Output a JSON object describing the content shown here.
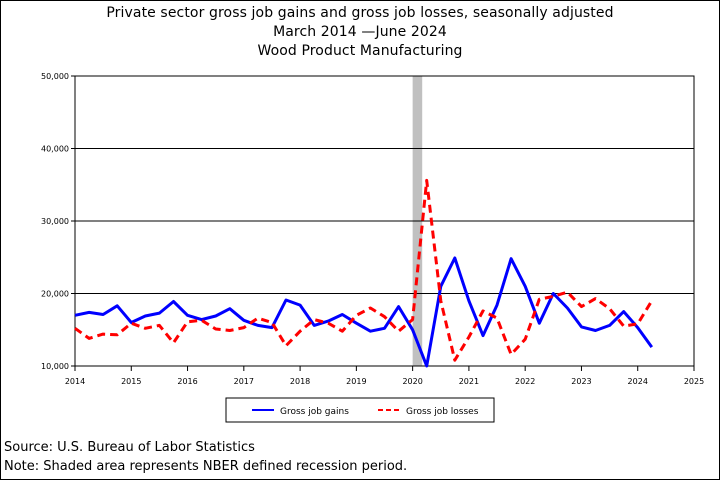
{
  "chart_data": {
    "type": "line",
    "title": "Private sector gross job gains and gross job losses, seasonally adjusted",
    "subtitle": "March 2014 —June 2024",
    "industry": "Wood Product Manufacturing",
    "xlabel": "",
    "ylabel": "",
    "xlim": [
      2014,
      2025
    ],
    "ylim": [
      10000,
      50000
    ],
    "x_ticks": [
      "2014",
      "2015",
      "2016",
      "2017",
      "2018",
      "2019",
      "2020",
      "2021",
      "2022",
      "2023",
      "2024",
      "2025"
    ],
    "y_ticks": [
      "10,000",
      "20,000",
      "30,000",
      "40,000",
      "50,000"
    ],
    "grid": "horizontal",
    "recession_band": [
      2020.0,
      2020.17
    ],
    "legend_position": "bottom",
    "x": [
      2014.0,
      2014.25,
      2014.5,
      2014.75,
      2015.0,
      2015.25,
      2015.5,
      2015.75,
      2016.0,
      2016.25,
      2016.5,
      2016.75,
      2017.0,
      2017.25,
      2017.5,
      2017.75,
      2018.0,
      2018.25,
      2018.5,
      2018.75,
      2019.0,
      2019.25,
      2019.5,
      2019.75,
      2020.0,
      2020.25,
      2020.5,
      2020.75,
      2021.0,
      2021.25,
      2021.5,
      2021.75,
      2022.0,
      2022.25,
      2022.5,
      2022.75,
      2023.0,
      2023.25,
      2023.5,
      2023.75,
      2024.0,
      2024.25
    ],
    "series": [
      {
        "name": "Gross job gains",
        "color": "#0000ff",
        "style": "solid",
        "values": [
          17000,
          17400,
          17100,
          18300,
          16000,
          16900,
          17300,
          18900,
          17000,
          16400,
          16900,
          17900,
          16300,
          15600,
          15300,
          19100,
          18400,
          15600,
          16200,
          17100,
          15900,
          14800,
          15200,
          18200,
          15000,
          10000,
          21000,
          24900,
          19000,
          14200,
          18400,
          24800,
          21000,
          15900,
          20000,
          18000,
          15400,
          14900,
          15600,
          17500,
          15300,
          12600
        ]
      },
      {
        "name": "Gross job losses",
        "color": "#ff0000",
        "style": "dashed",
        "values": [
          15200,
          13800,
          14400,
          14300,
          15900,
          15200,
          15600,
          13200,
          16100,
          16300,
          15100,
          14900,
          15300,
          16600,
          16000,
          12800,
          14800,
          16400,
          15900,
          14800,
          17000,
          18000,
          16800,
          14800,
          16400,
          35600,
          19000,
          10800,
          14000,
          17600,
          16600,
          11600,
          13700,
          19200,
          19600,
          20200,
          18200,
          19300,
          17900,
          15500,
          15800,
          19000
        ]
      }
    ],
    "legend": [
      "Gross job gains",
      "Gross job losses"
    ]
  },
  "footer": {
    "source": "Source: U.S. Bureau of Labor Statistics",
    "note": "Note: Shaded area represents NBER defined recession period."
  }
}
